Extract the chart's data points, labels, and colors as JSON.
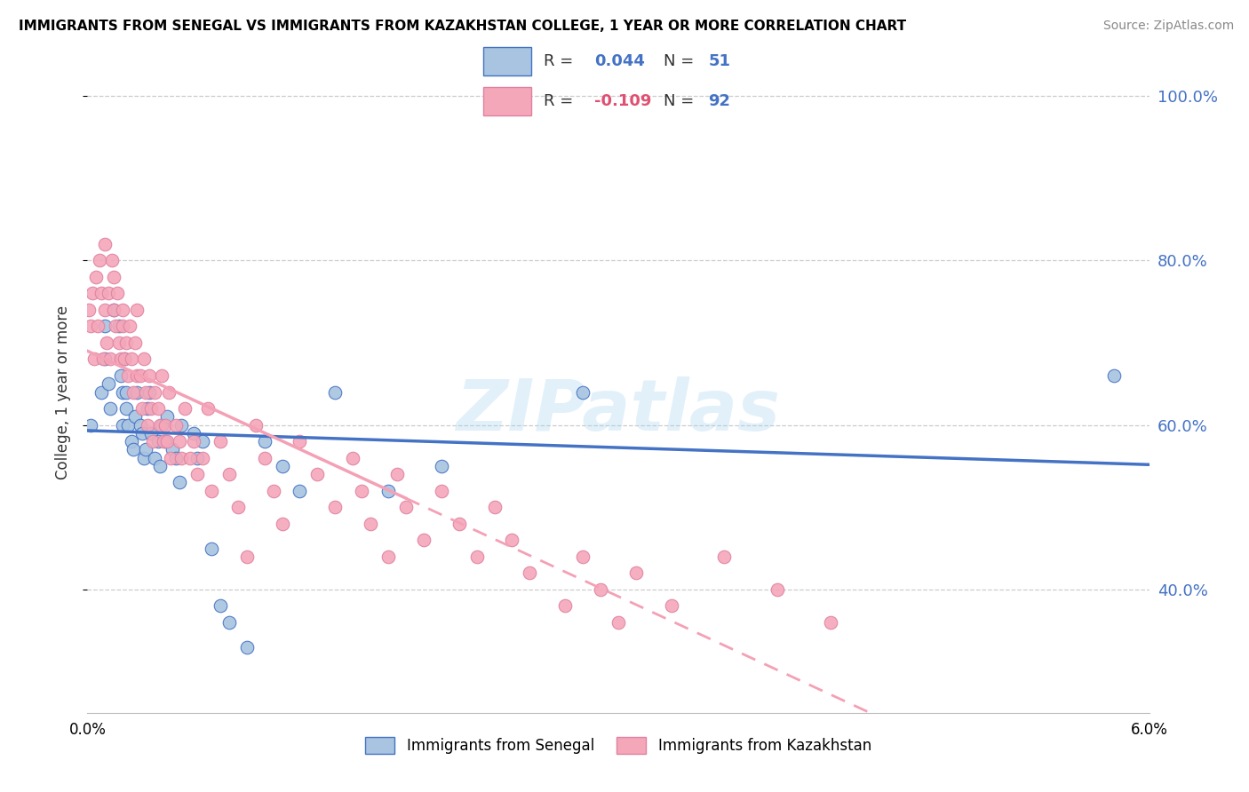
{
  "title": "IMMIGRANTS FROM SENEGAL VS IMMIGRANTS FROM KAZAKHSTAN COLLEGE, 1 YEAR OR MORE CORRELATION CHART",
  "source": "Source: ZipAtlas.com",
  "ylabel": "College, 1 year or more",
  "xlim": [
    0.0,
    0.06
  ],
  "ylim": [
    0.25,
    1.03
  ],
  "yticks": [
    0.4,
    0.6,
    0.8,
    1.0
  ],
  "ytick_labels": [
    "40.0%",
    "60.0%",
    "80.0%",
    "100.0%"
  ],
  "xticks": [
    0.0,
    0.01,
    0.02,
    0.03,
    0.04,
    0.05,
    0.06
  ],
  "xtick_labels": [
    "0.0%",
    "",
    "",
    "",
    "",
    "",
    "6.0%"
  ],
  "senegal_R": 0.044,
  "senegal_N": 51,
  "kazakhstan_R": -0.109,
  "kazakhstan_N": 92,
  "senegal_color": "#a8c4e0",
  "kazakhstan_color": "#f4a7b9",
  "senegal_line_color": "#4472c4",
  "kazakhstan_line_color": "#f4a0b5",
  "watermark": "ZIPatlas",
  "senegal_x": [
    0.0002,
    0.0008,
    0.001,
    0.001,
    0.0012,
    0.0013,
    0.0015,
    0.0018,
    0.0019,
    0.002,
    0.002,
    0.0021,
    0.0022,
    0.0022,
    0.0023,
    0.0025,
    0.0026,
    0.0027,
    0.0028,
    0.003,
    0.0031,
    0.0032,
    0.0033,
    0.0034,
    0.0035,
    0.0036,
    0.0038,
    0.004,
    0.0041,
    0.0042,
    0.0044,
    0.0045,
    0.0048,
    0.005,
    0.0052,
    0.0053,
    0.006,
    0.0062,
    0.0065,
    0.007,
    0.0075,
    0.008,
    0.009,
    0.01,
    0.011,
    0.012,
    0.014,
    0.017,
    0.02,
    0.028,
    0.058
  ],
  "senegal_y": [
    0.6,
    0.64,
    0.68,
    0.72,
    0.65,
    0.62,
    0.74,
    0.72,
    0.66,
    0.64,
    0.6,
    0.68,
    0.62,
    0.64,
    0.6,
    0.58,
    0.57,
    0.61,
    0.64,
    0.6,
    0.59,
    0.56,
    0.57,
    0.62,
    0.64,
    0.59,
    0.56,
    0.58,
    0.55,
    0.6,
    0.58,
    0.61,
    0.57,
    0.56,
    0.53,
    0.6,
    0.59,
    0.56,
    0.58,
    0.45,
    0.38,
    0.36,
    0.33,
    0.58,
    0.55,
    0.52,
    0.64,
    0.52,
    0.55,
    0.64,
    0.66
  ],
  "kazakhstan_x": [
    0.0001,
    0.0002,
    0.0003,
    0.0004,
    0.0005,
    0.0006,
    0.0007,
    0.0008,
    0.0009,
    0.001,
    0.001,
    0.0011,
    0.0012,
    0.0013,
    0.0014,
    0.0015,
    0.0015,
    0.0016,
    0.0017,
    0.0018,
    0.0019,
    0.002,
    0.002,
    0.0021,
    0.0022,
    0.0023,
    0.0024,
    0.0025,
    0.0026,
    0.0027,
    0.0028,
    0.0028,
    0.003,
    0.0031,
    0.0032,
    0.0033,
    0.0034,
    0.0035,
    0.0036,
    0.0037,
    0.0038,
    0.004,
    0.0041,
    0.0042,
    0.0043,
    0.0044,
    0.0045,
    0.0046,
    0.0047,
    0.005,
    0.0052,
    0.0053,
    0.0055,
    0.0058,
    0.006,
    0.0062,
    0.0065,
    0.0068,
    0.007,
    0.0075,
    0.008,
    0.0085,
    0.009,
    0.0095,
    0.01,
    0.0105,
    0.011,
    0.012,
    0.013,
    0.014,
    0.015,
    0.0155,
    0.016,
    0.017,
    0.0175,
    0.018,
    0.019,
    0.02,
    0.021,
    0.022,
    0.023,
    0.024,
    0.025,
    0.027,
    0.028,
    0.029,
    0.03,
    0.031,
    0.033,
    0.036,
    0.039,
    0.042
  ],
  "kazakhstan_y": [
    0.74,
    0.72,
    0.76,
    0.68,
    0.78,
    0.72,
    0.8,
    0.76,
    0.68,
    0.74,
    0.82,
    0.7,
    0.76,
    0.68,
    0.8,
    0.74,
    0.78,
    0.72,
    0.76,
    0.7,
    0.68,
    0.72,
    0.74,
    0.68,
    0.7,
    0.66,
    0.72,
    0.68,
    0.64,
    0.7,
    0.66,
    0.74,
    0.66,
    0.62,
    0.68,
    0.64,
    0.6,
    0.66,
    0.62,
    0.58,
    0.64,
    0.62,
    0.6,
    0.66,
    0.58,
    0.6,
    0.58,
    0.64,
    0.56,
    0.6,
    0.58,
    0.56,
    0.62,
    0.56,
    0.58,
    0.54,
    0.56,
    0.62,
    0.52,
    0.58,
    0.54,
    0.5,
    0.44,
    0.6,
    0.56,
    0.52,
    0.48,
    0.58,
    0.54,
    0.5,
    0.56,
    0.52,
    0.48,
    0.44,
    0.54,
    0.5,
    0.46,
    0.52,
    0.48,
    0.44,
    0.5,
    0.46,
    0.42,
    0.38,
    0.44,
    0.4,
    0.36,
    0.42,
    0.38,
    0.44,
    0.4,
    0.36
  ]
}
